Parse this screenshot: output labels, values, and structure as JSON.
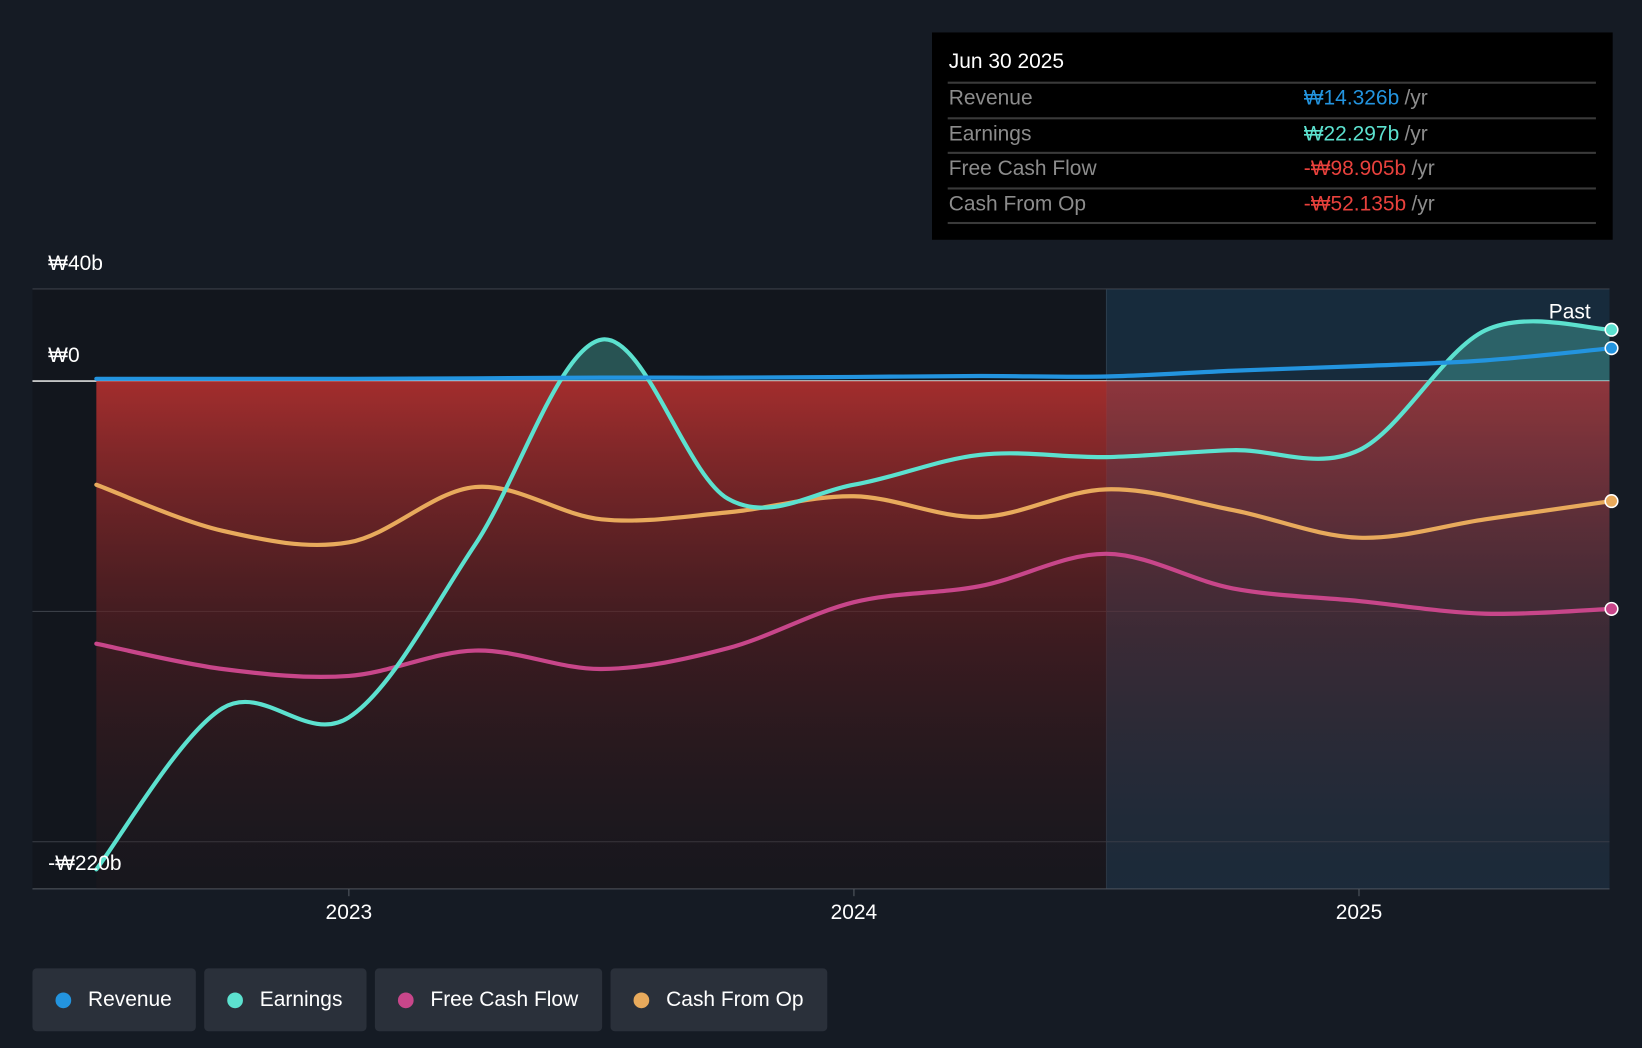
{
  "tooltip": {
    "date": "Jun 30 2025",
    "unit": "/yr",
    "rows": [
      {
        "label": "Revenue",
        "value": "₩14.326b",
        "color": "#2394df"
      },
      {
        "label": "Earnings",
        "value": "₩22.297b",
        "color": "#5ce1cf"
      },
      {
        "label": "Free Cash Flow",
        "value": "-₩98.905b",
        "color": "#e8413c"
      },
      {
        "label": "Cash From Op",
        "value": "-₩52.135b",
        "color": "#e8413c"
      }
    ]
  },
  "past_label": "Past",
  "chart_data": {
    "type": "line",
    "title": "",
    "xlabel": "",
    "ylabel": "",
    "ylim": [
      -220,
      40
    ],
    "y_tick_labels": {
      "top": "₩40b",
      "zero": "₩0",
      "bottom": "-₩220b"
    },
    "x_ticks": [
      {
        "label": "2023",
        "value": 2023
      },
      {
        "label": "2024",
        "value": 2024
      },
      {
        "label": "2025",
        "value": 2025
      }
    ],
    "x": [
      2022.5,
      2022.75,
      2023,
      2023.25,
      2023.5,
      2023.75,
      2024,
      2024.25,
      2024.5,
      2024.75,
      2025,
      2025.25,
      2025.5
    ],
    "past_start": 2024.5,
    "series": [
      {
        "name": "Revenue",
        "color": "#2394df",
        "values": [
          1,
          1,
          1,
          1.2,
          1.5,
          1.5,
          1.8,
          2.2,
          2,
          4.5,
          6.5,
          9,
          14.3
        ]
      },
      {
        "name": "Earnings",
        "color": "#5ce1cf",
        "values": [
          -212,
          -142,
          -146,
          -71,
          18,
          -51,
          -45,
          -32,
          -33,
          -30,
          -30,
          22,
          22.3
        ]
      },
      {
        "name": "Free Cash Flow",
        "color": "#c8468a",
        "values": [
          -114,
          -125,
          -128,
          -117,
          -125,
          -116,
          -96,
          -89,
          -75,
          -90,
          -95.5,
          -101,
          -98.9
        ]
      },
      {
        "name": "Cash From Op",
        "color": "#e8aa5c",
        "values": [
          -45,
          -65,
          -70,
          -46,
          -60,
          -57,
          -50,
          -59,
          -47,
          -56,
          -68,
          -60,
          -52.1
        ]
      }
    ],
    "legend_position": "bottom-left",
    "grid": true
  }
}
